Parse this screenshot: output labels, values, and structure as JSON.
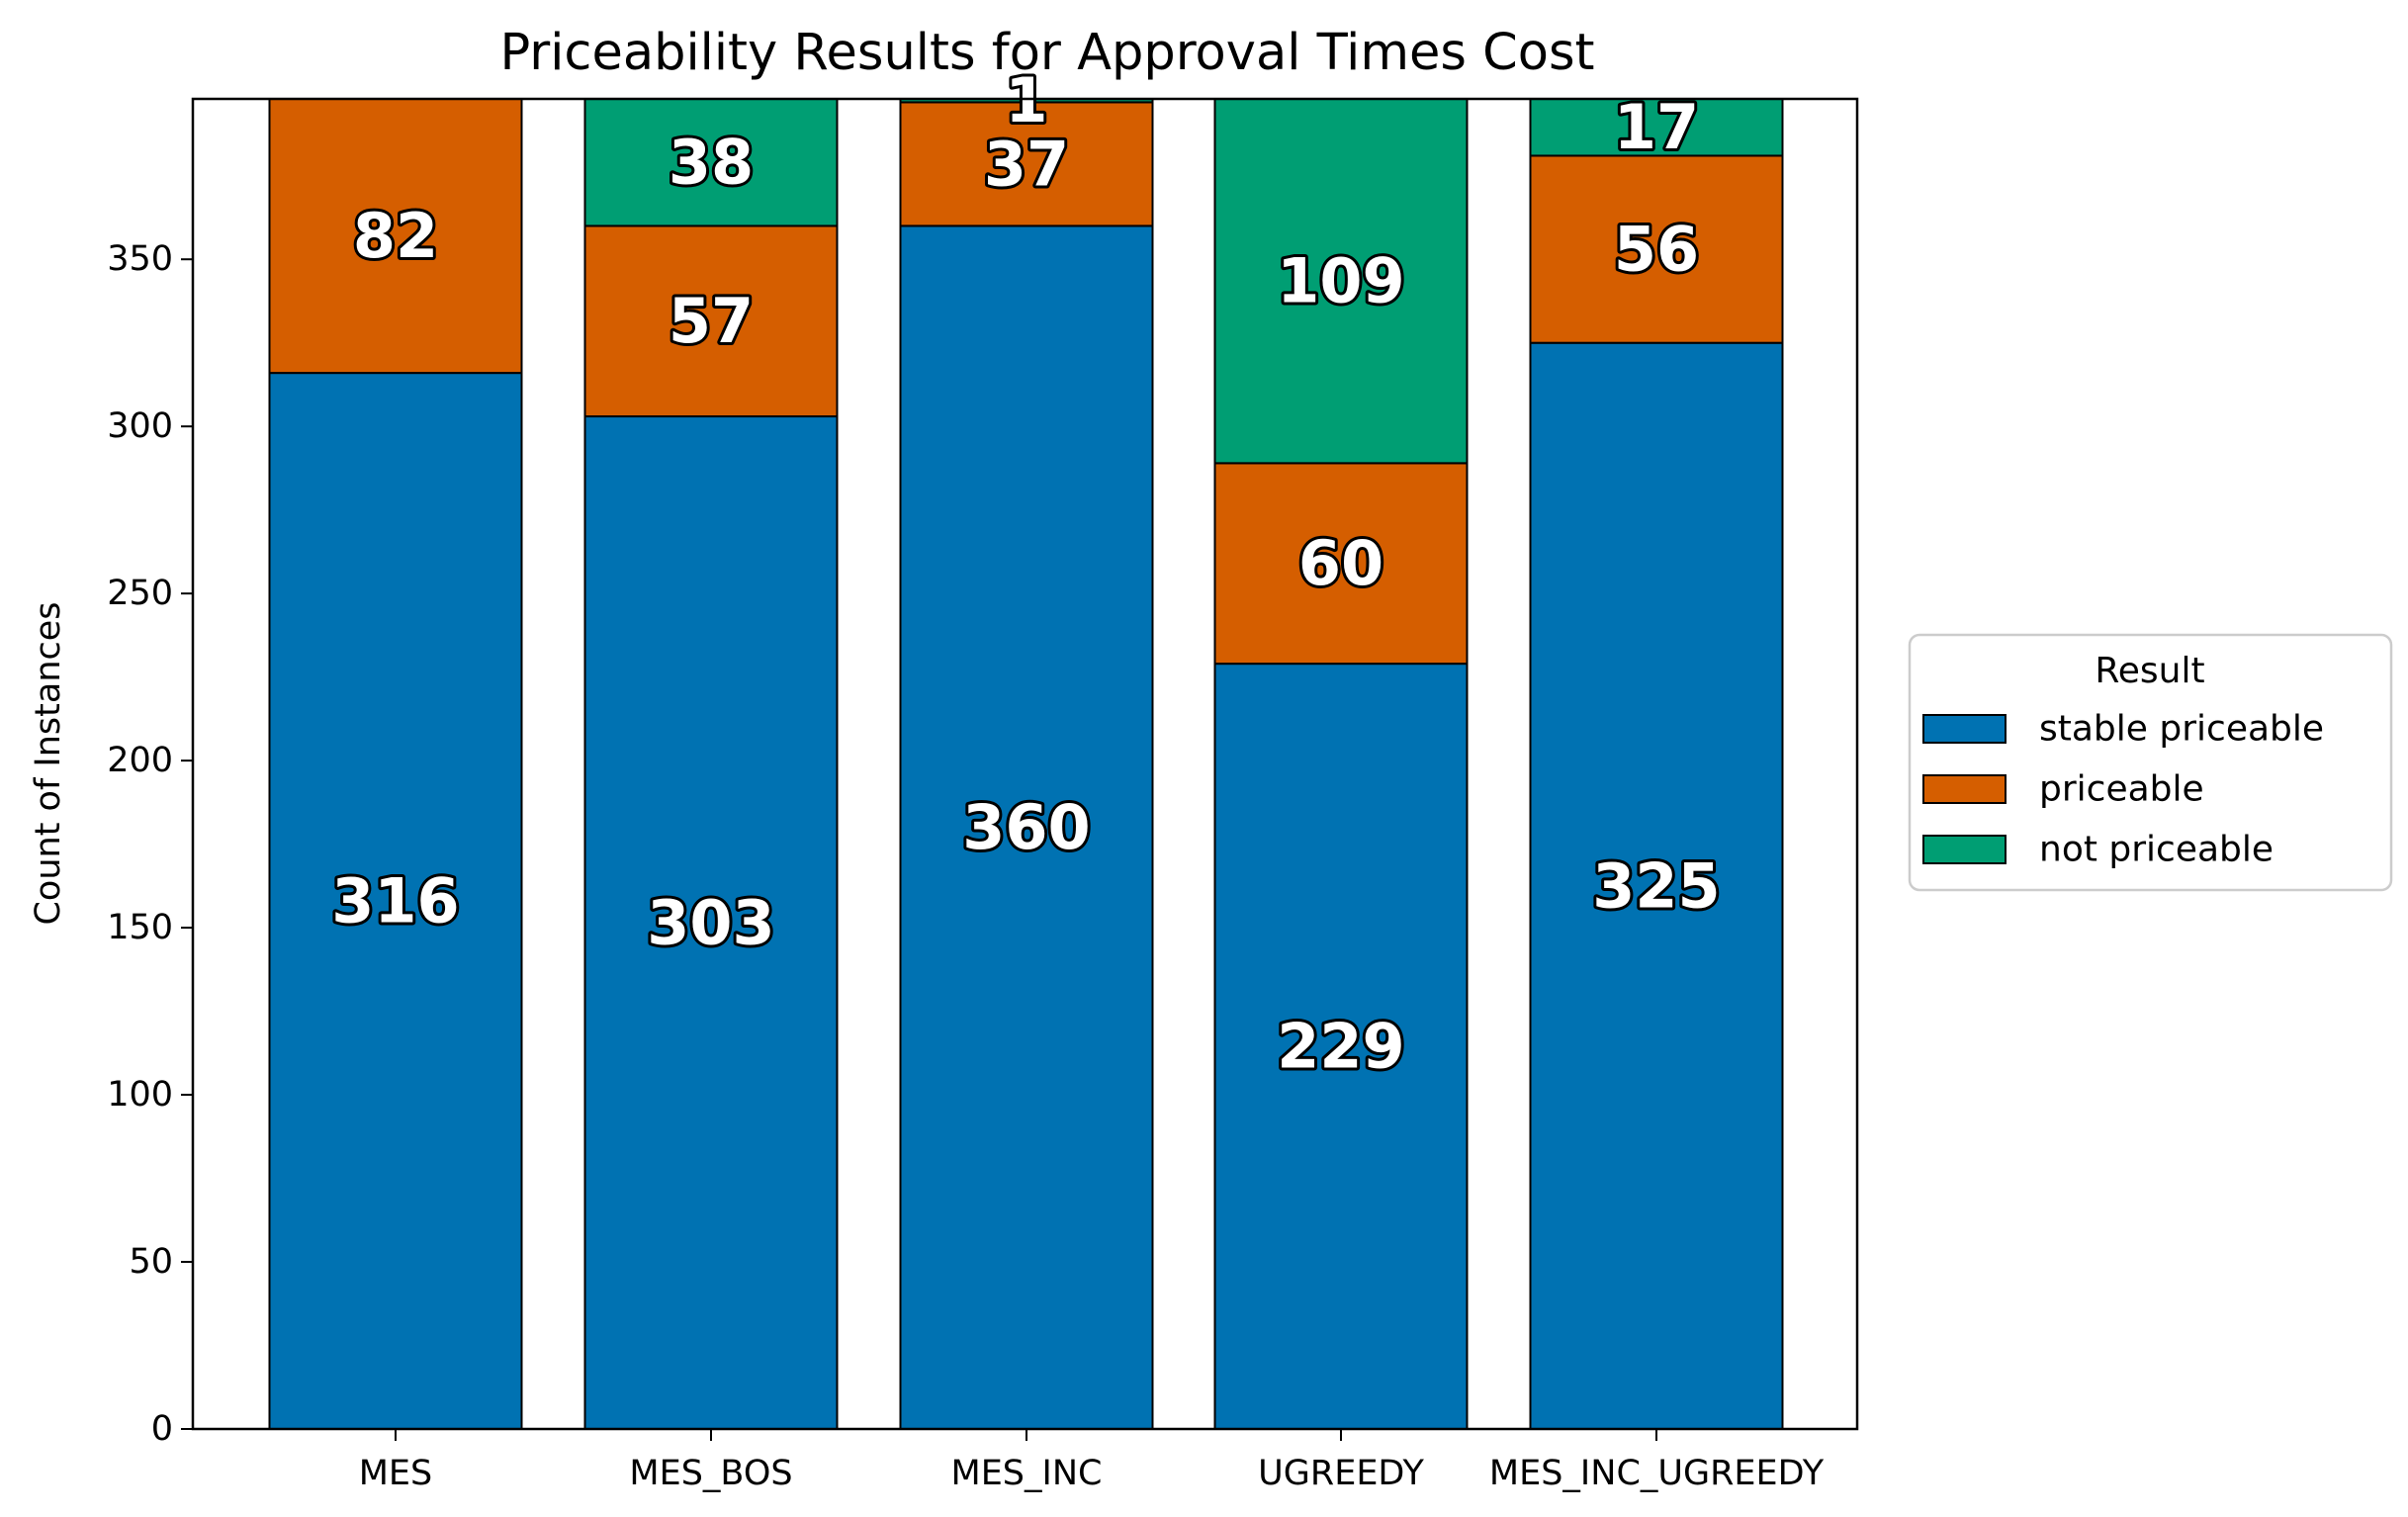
{
  "chart_data": {
    "type": "bar",
    "stacked": true,
    "title": "Priceability Results for Approval Times Cost",
    "xlabel": "",
    "ylabel": "Count of Instances",
    "ylim": [
      0,
      398
    ],
    "yticks": [
      0,
      50,
      100,
      150,
      200,
      250,
      300,
      350
    ],
    "categories": [
      "MES",
      "MES_BOS",
      "MES_INC",
      "UGREEDY",
      "MES_INC_UGREEDY"
    ],
    "series": [
      {
        "name": "stable priceable",
        "color": "#0072b2",
        "values": [
          316,
          303,
          360,
          229,
          325
        ]
      },
      {
        "name": "priceable",
        "color": "#d55e00",
        "values": [
          82,
          57,
          37,
          60,
          56
        ]
      },
      {
        "name": "not priceable",
        "color": "#009e73",
        "values": [
          0,
          38,
          1,
          109,
          17
        ]
      }
    ],
    "legend": {
      "title": "Result",
      "placement": "center-right-outside"
    },
    "grid": false
  }
}
